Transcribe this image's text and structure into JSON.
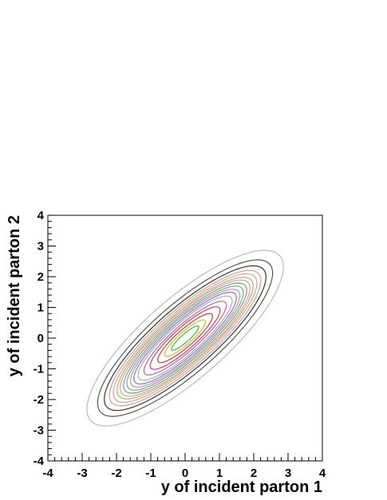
{
  "chart_data": {
    "type": "contour",
    "title": "",
    "xlabel": "y of incident parton 1",
    "ylabel": "y of incident parton 2",
    "xlim": [
      -4,
      4
    ],
    "ylim": [
      -4,
      4
    ],
    "xticks": [
      "-4",
      "-3",
      "-2",
      "-1",
      "0",
      "1",
      "2",
      "3",
      "4"
    ],
    "yticks": [
      "-4",
      "-3",
      "-2",
      "-1",
      "0",
      "1",
      "2",
      "3",
      "4"
    ],
    "grid": false,
    "legend": "none",
    "contours": [
      {
        "color": "#bbbbbb",
        "a": 3.85,
        "b": 1.25
      },
      {
        "color": "#555555",
        "a": 3.45,
        "b": 1.05
      },
      {
        "color": "#333333",
        "a": 3.2,
        "b": 0.93
      },
      {
        "color": "#c8a090",
        "a": 3.0,
        "b": 0.86
      },
      {
        "color": "#d0a0a0",
        "a": 2.85,
        "b": 0.8
      },
      {
        "color": "#b0b070",
        "a": 2.7,
        "b": 0.75
      },
      {
        "color": "#e0a070",
        "a": 2.58,
        "b": 0.71
      },
      {
        "color": "#8888cc",
        "a": 2.45,
        "b": 0.66
      },
      {
        "color": "#66bb66",
        "a": 2.32,
        "b": 0.61
      },
      {
        "color": "#cc88aa",
        "a": 2.18,
        "b": 0.57
      },
      {
        "color": "#7777dd",
        "a": 2.05,
        "b": 0.52
      },
      {
        "color": "#aaaaaa",
        "a": 1.88,
        "b": 0.47
      },
      {
        "color": "#cc6666",
        "a": 1.65,
        "b": 0.4
      },
      {
        "color": "#cc3388",
        "a": 1.4,
        "b": 0.34
      },
      {
        "color": "#dd3333",
        "a": 1.1,
        "b": 0.26
      },
      {
        "color": "#ccbb33",
        "a": 0.82,
        "b": 0.19
      },
      {
        "color": "#33bb33",
        "a": 0.55,
        "b": 0.12
      }
    ]
  }
}
